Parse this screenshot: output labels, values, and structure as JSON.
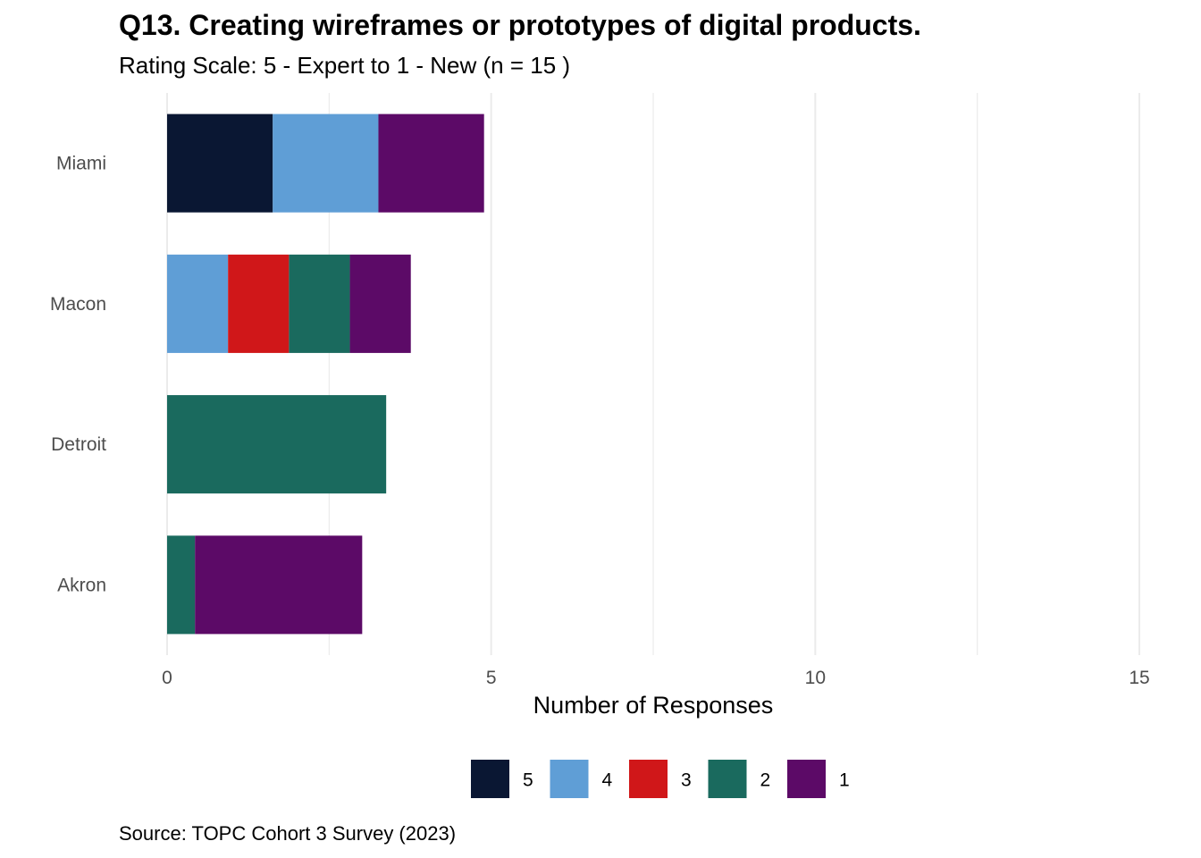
{
  "chart_data": {
    "type": "bar",
    "orientation": "horizontal",
    "stacked": true,
    "title": "Q13. Creating wireframes or prototypes of digital products.",
    "subtitle": "Rating Scale: 5 - Expert to 1 - New (n = 15 )",
    "caption": "Source: TOPC Cohort 3 Survey (2023)",
    "xlabel": "Number of Responses",
    "ylabel": "",
    "xlim": [
      0,
      15
    ],
    "xticks": [
      0,
      5,
      10,
      15
    ],
    "grid": true,
    "legend_position": "bottom",
    "categories": [
      "Miami",
      "Macon",
      "Detroit",
      "Akron"
    ],
    "series": [
      {
        "name": "5",
        "color": "#0a1733",
        "values": [
          1.63,
          0,
          0,
          0
        ]
      },
      {
        "name": "4",
        "color": "#5f9ed6",
        "values": [
          1.63,
          0.94,
          0,
          0
        ]
      },
      {
        "name": "3",
        "color": "#d01719",
        "values": [
          0,
          0.94,
          0,
          0
        ]
      },
      {
        "name": "2",
        "color": "#1a6a5e",
        "values": [
          0,
          0.94,
          3.38,
          0.43
        ]
      },
      {
        "name": "1",
        "color": "#5c0a67",
        "values": [
          1.63,
          0.94,
          0,
          2.58
        ]
      }
    ]
  }
}
